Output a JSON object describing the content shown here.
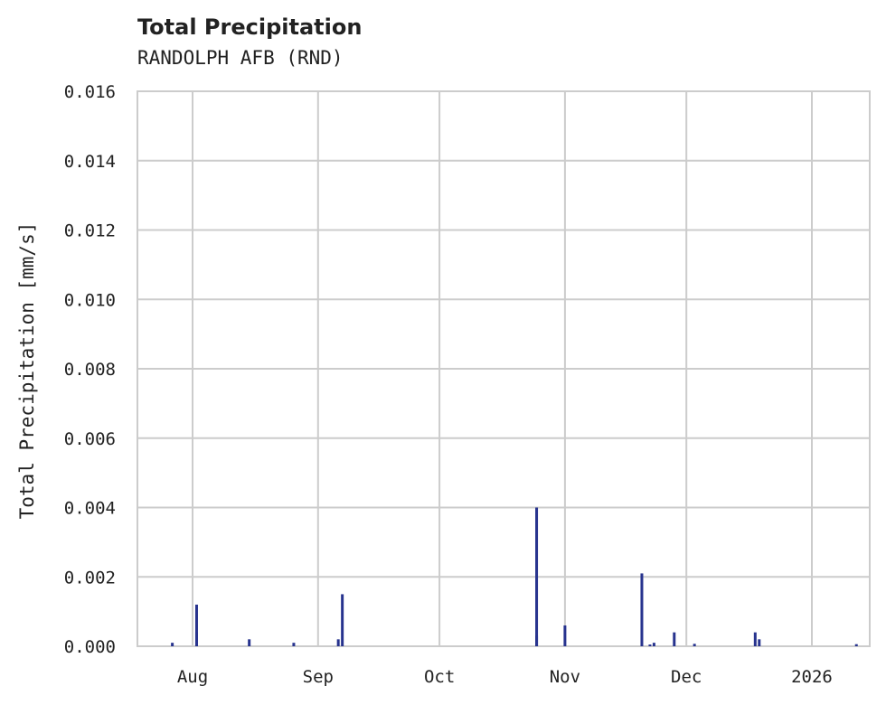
{
  "header": {
    "title": "Total Precipitation",
    "subtitle": "RANDOLPH AFB (RND)"
  },
  "colors": {
    "bar": "#27338e",
    "grid": "#cccccc",
    "frame": "#cccccc",
    "text": "#222222"
  },
  "chart_data": {
    "type": "bar",
    "title": "Total Precipitation",
    "subtitle": "RANDOLPH AFB (RND)",
    "xlabel": "",
    "ylabel": "Total Precipitation [mm/s]",
    "ylim": [
      0,
      0.016
    ],
    "yticks": [
      "0.000",
      "0.002",
      "0.004",
      "0.006",
      "0.008",
      "0.010",
      "0.012",
      "0.014",
      "0.016"
    ],
    "xticks": [
      "Aug",
      "Sep",
      "Oct",
      "Nov",
      "Dec",
      "2026"
    ],
    "grid": true,
    "legend": null,
    "x": [
      "2025-07-27",
      "2025-08-02",
      "2025-08-02",
      "2025-08-15",
      "2025-08-26",
      "2025-09-06",
      "2025-09-07",
      "2025-10-25",
      "2025-10-25",
      "2025-11-01",
      "2025-11-20",
      "2025-11-22",
      "2025-11-23",
      "2025-11-28",
      "2025-12-03",
      "2025-12-18",
      "2025-12-19",
      "2026-01-12"
    ],
    "values": [
      0.0001,
      0.0012,
      0.0004,
      0.0002,
      0.0001,
      0.0002,
      0.0015,
      0.004,
      0.0003,
      0.0006,
      0.0021,
      5e-05,
      0.0001,
      0.0004,
      7e-05,
      0.0004,
      0.0002,
      6e-05
    ]
  }
}
